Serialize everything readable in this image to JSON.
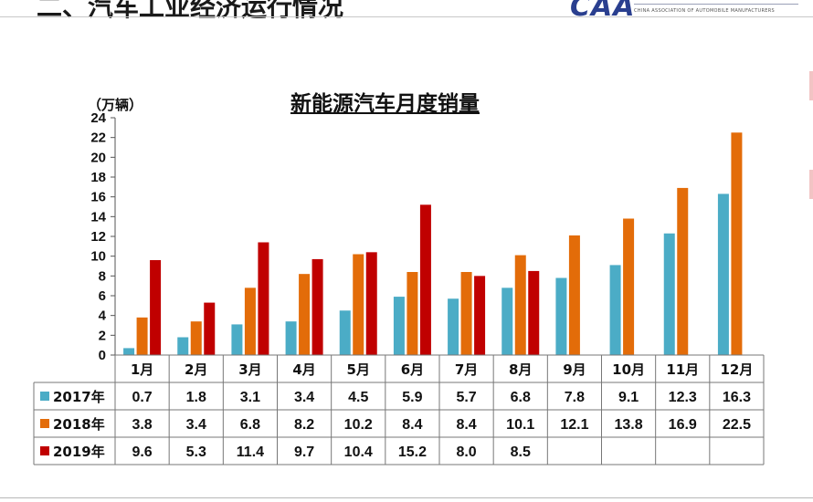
{
  "slide": {
    "title": "二、汽车工业经济运行情况",
    "logo_text": "CHINA ASSOCIATION OF AUTOMOBILE MANUFACTURERS"
  },
  "chart_data": {
    "type": "bar",
    "title": "新能源汽车月度销量",
    "ylabel": "（万辆）",
    "xlabel": "",
    "ylim": [
      0,
      24
    ],
    "yticks": [
      0,
      2,
      4,
      6,
      8,
      10,
      12,
      14,
      16,
      18,
      20,
      22,
      24
    ],
    "grid": false,
    "legend": "table",
    "categories": [
      "1月",
      "2月",
      "3月",
      "4月",
      "5月",
      "6月",
      "7月",
      "8月",
      "9月",
      "10月",
      "11月",
      "12月"
    ],
    "series": [
      {
        "name": "2017年",
        "color": "#4bacc6",
        "values": [
          0.7,
          1.8,
          3.1,
          3.4,
          4.5,
          5.9,
          5.7,
          6.8,
          7.8,
          9.1,
          12.3,
          16.3
        ]
      },
      {
        "name": "2018年",
        "color": "#e36c09",
        "values": [
          3.8,
          3.4,
          6.8,
          8.2,
          10.2,
          8.4,
          8.4,
          10.1,
          12.1,
          13.8,
          16.9,
          22.5
        ]
      },
      {
        "name": "2019年",
        "color": "#c00000",
        "values": [
          9.6,
          5.3,
          11.4,
          9.7,
          10.4,
          15.2,
          8.0,
          8.5,
          null,
          null,
          null,
          null
        ]
      }
    ]
  }
}
